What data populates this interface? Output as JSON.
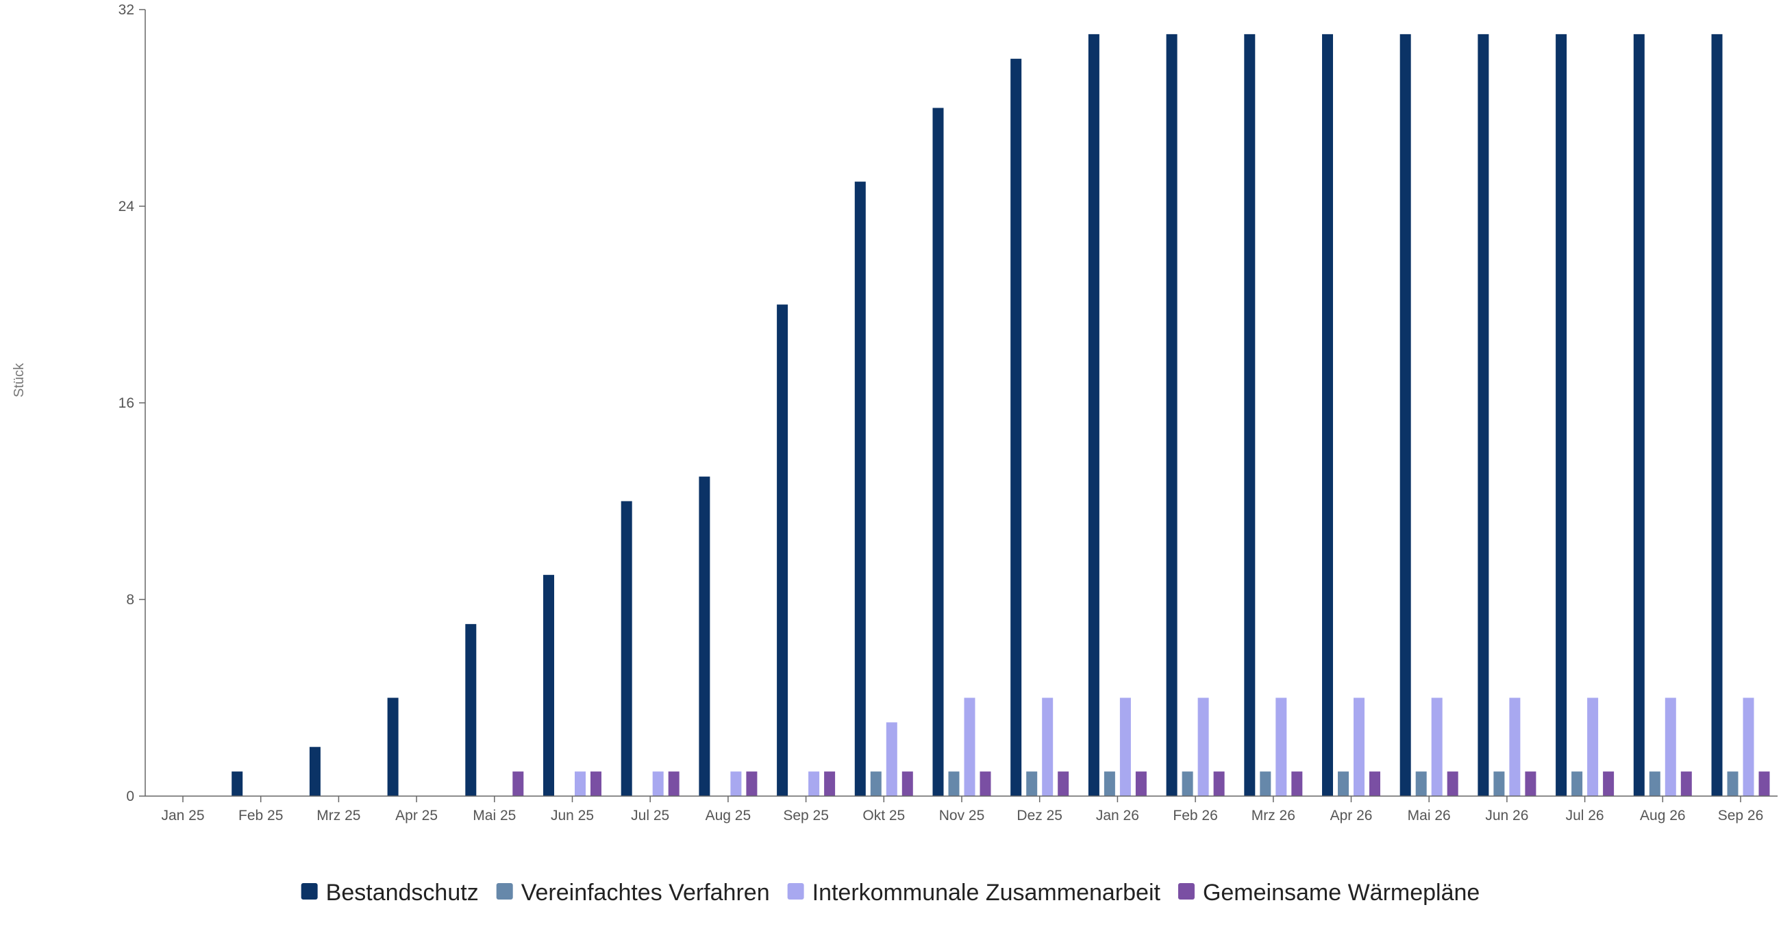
{
  "chart_data": {
    "type": "bar",
    "title": "",
    "xlabel": "",
    "ylabel": "Stück",
    "ylim": [
      0,
      32
    ],
    "yticks": [
      0,
      8,
      16,
      24,
      32
    ],
    "grid": false,
    "legend_position": "bottom-center",
    "categories": [
      "Jan 25",
      "Feb 25",
      "Mrz 25",
      "Apr 25",
      "Mai 25",
      "Jun 25",
      "Jul 25",
      "Aug 25",
      "Sep 25",
      "Okt 25",
      "Nov 25",
      "Dez 25",
      "Jan 26",
      "Feb 26",
      "Mrz 26",
      "Apr 26",
      "Mai 26",
      "Jun 26",
      "Jul 26",
      "Aug 26",
      "Sep 26"
    ],
    "series": [
      {
        "name": "Bestandschutz",
        "color": "#0b3366",
        "values": [
          0,
          1,
          2,
          4,
          7,
          9,
          12,
          13,
          20,
          25,
          28,
          30,
          31,
          31,
          31,
          31,
          31,
          31,
          31,
          31,
          31
        ]
      },
      {
        "name": "Vereinfachtes Verfahren",
        "color": "#6688aa",
        "values": [
          0,
          0,
          0,
          0,
          0,
          0,
          0,
          0,
          0,
          1,
          1,
          1,
          1,
          1,
          1,
          1,
          1,
          1,
          1,
          1,
          1
        ]
      },
      {
        "name": "Interkommunale Zusammenarbeit",
        "color": "#a8a8f0",
        "values": [
          0,
          0,
          0,
          0,
          0,
          1,
          1,
          1,
          1,
          3,
          4,
          4,
          4,
          4,
          4,
          4,
          4,
          4,
          4,
          4,
          4
        ]
      },
      {
        "name": "Gemeinsame Wärmepläne",
        "color": "#7a4fa3",
        "values": [
          0,
          0,
          0,
          0,
          1,
          1,
          1,
          1,
          1,
          1,
          1,
          1,
          1,
          1,
          1,
          1,
          1,
          1,
          1,
          1,
          1
        ]
      }
    ]
  }
}
